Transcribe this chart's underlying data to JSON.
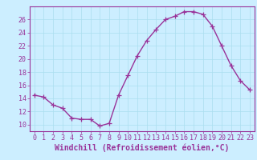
{
  "x": [
    0,
    1,
    2,
    3,
    4,
    5,
    6,
    7,
    8,
    9,
    10,
    11,
    12,
    13,
    14,
    15,
    16,
    17,
    18,
    19,
    20,
    21,
    22,
    23
  ],
  "y": [
    14.5,
    14.2,
    13.0,
    12.5,
    11.0,
    10.8,
    10.8,
    9.8,
    10.2,
    14.5,
    17.5,
    20.5,
    22.8,
    24.5,
    26.0,
    26.5,
    27.2,
    27.2,
    26.8,
    25.0,
    22.0,
    19.0,
    16.7,
    15.3
  ],
  "line_color": "#993399",
  "marker": "+",
  "marker_size": 4,
  "bg_color": "#cceeff",
  "grid_color": "#aaddee",
  "xlabel": "Windchill (Refroidissement éolien,°C)",
  "xlabel_fontsize": 7,
  "tick_fontsize": 6,
  "ylim": [
    9,
    28
  ],
  "yticks": [
    10,
    12,
    14,
    16,
    18,
    20,
    22,
    24,
    26
  ],
  "xticks": [
    0,
    1,
    2,
    3,
    4,
    5,
    6,
    7,
    8,
    9,
    10,
    11,
    12,
    13,
    14,
    15,
    16,
    17,
    18,
    19,
    20,
    21,
    22,
    23
  ],
  "line_width": 1.0,
  "tick_color": "#993399",
  "spine_color": "#993399"
}
